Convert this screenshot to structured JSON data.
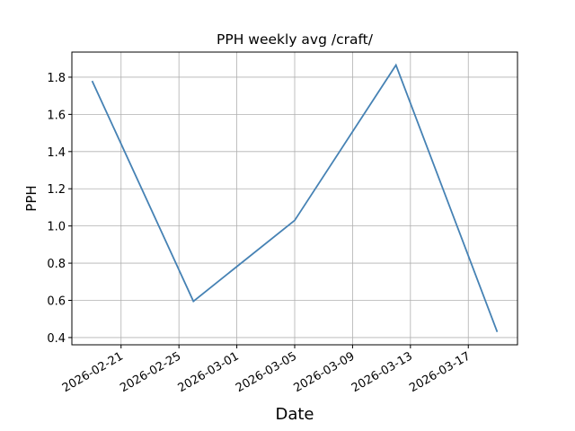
{
  "chart_data": {
    "type": "line",
    "title": "PPH weekly avg /craft/",
    "xlabel": "Date",
    "ylabel": "PPH",
    "x": [
      "2026-02-19",
      "2026-02-26",
      "2026-03-05",
      "2026-03-12",
      "2026-03-19"
    ],
    "values": [
      1.78,
      0.595,
      1.03,
      1.865,
      0.43
    ],
    "color": "#4682b4",
    "xticks": [
      "2026-02-21",
      "2026-02-25",
      "2026-03-01",
      "2026-03-05",
      "2026-03-09",
      "2026-03-13",
      "2026-03-17"
    ],
    "ylim": [
      0.361,
      1.935
    ],
    "yticks": [
      0.4,
      0.6,
      0.8,
      {
        "value": 1,
        "label": "1.0"
      },
      1.2,
      1.4,
      1.6,
      1.8
    ],
    "grid": true
  }
}
